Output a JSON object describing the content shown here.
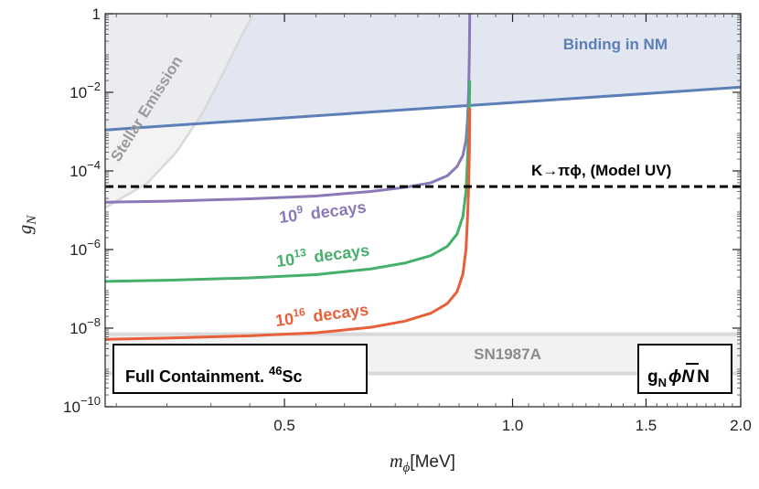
{
  "chart_data": {
    "type": "line",
    "xlabel": "m",
    "xlabel_sub": "ϕ",
    "xlabel_unit": "[MeV]",
    "ylabel": "g",
    "ylabel_sub": "N",
    "x_scale": "log",
    "y_scale": "log",
    "xlim": [
      0.29,
      2.0
    ],
    "ylim": [
      1e-10,
      1
    ],
    "x_ticks": [
      {
        "value": 0.5,
        "label": "0.5"
      },
      {
        "value": 1.0,
        "label": "1.0"
      },
      {
        "value": 1.5,
        "label": "1.5"
      },
      {
        "value": 2.0,
        "label": "2.0"
      }
    ],
    "y_ticks": [
      {
        "value": 1,
        "label": "1",
        "exp": ""
      },
      {
        "value": 0.01,
        "label": "10",
        "exp": "−2"
      },
      {
        "value": 0.0001,
        "label": "10",
        "exp": "−4"
      },
      {
        "value": 1e-06,
        "label": "10",
        "exp": "−6"
      },
      {
        "value": 1e-08,
        "label": "10",
        "exp": "−8"
      },
      {
        "value": 1e-10,
        "label": "10",
        "exp": "−10"
      }
    ],
    "grid": false,
    "regions": [
      {
        "name": "Binding in NM",
        "color": "#5b7fb6",
        "fill": "#dfe5ef",
        "boundary": [
          [
            0.29,
            0.0011
          ],
          [
            2.0,
            0.0135
          ]
        ]
      },
      {
        "name": "Stellar Emission",
        "color": "#d9d9d9",
        "fill": "#eeeeee",
        "boundary": [
          [
            0.29,
            1.15e-05
          ],
          [
            0.33,
            5e-05
          ],
          [
            0.36,
            0.0003
          ],
          [
            0.39,
            0.003
          ],
          [
            0.415,
            0.03
          ],
          [
            0.44,
            0.3
          ],
          [
            0.455,
            1
          ]
        ]
      },
      {
        "name": "SN1987A",
        "color": "#d9d9d9",
        "fill": "#f2f2f2",
        "y_range": [
          7e-10,
          7e-09
        ]
      }
    ],
    "constraint_line": {
      "name": "K→πϕ, (Model UV)",
      "y": 4e-05,
      "style": "dashed",
      "color": "#000000"
    },
    "series": [
      {
        "name": "10^9 decays",
        "mantissa": "10",
        "exponent": "9",
        "suffix": "decays",
        "color": "#8a78b8",
        "points": [
          [
            0.29,
            1.6e-05
          ],
          [
            0.35,
            1.7e-05
          ],
          [
            0.45,
            1.95e-05
          ],
          [
            0.55,
            2.3e-05
          ],
          [
            0.65,
            3e-05
          ],
          [
            0.72,
            3.8e-05
          ],
          [
            0.78,
            5e-05
          ],
          [
            0.82,
            7.5e-05
          ],
          [
            0.845,
            0.00013
          ],
          [
            0.86,
            0.00025
          ],
          [
            0.868,
            0.0006
          ],
          [
            0.872,
            0.002
          ],
          [
            0.875,
            0.01
          ],
          [
            0.877,
            0.1
          ],
          [
            0.878,
            1
          ]
        ]
      },
      {
        "name": "10^13 decays",
        "mantissa": "10",
        "exponent": "13",
        "suffix": "decays",
        "color": "#44b06b",
        "points": [
          [
            0.29,
            1.55e-07
          ],
          [
            0.35,
            1.65e-07
          ],
          [
            0.45,
            1.9e-07
          ],
          [
            0.55,
            2.3e-07
          ],
          [
            0.65,
            3.2e-07
          ],
          [
            0.72,
            4.5e-07
          ],
          [
            0.78,
            7e-07
          ],
          [
            0.82,
            1.2e-06
          ],
          [
            0.845,
            2.5e-06
          ],
          [
            0.86,
            7e-06
          ],
          [
            0.868,
            3e-05
          ],
          [
            0.872,
            0.0002
          ],
          [
            0.875,
            0.001
          ],
          [
            0.877,
            0.005
          ],
          [
            0.878,
            0.02
          ]
        ]
      },
      {
        "name": "10^16 decays",
        "mantissa": "10",
        "exponent": "16",
        "suffix": "decays",
        "color": "#e8603a",
        "points": [
          [
            0.29,
            5.2e-09
          ],
          [
            0.35,
            5.6e-09
          ],
          [
            0.45,
            6.4e-09
          ],
          [
            0.55,
            7.6e-09
          ],
          [
            0.65,
            1.05e-08
          ],
          [
            0.72,
            1.5e-08
          ],
          [
            0.78,
            2.4e-08
          ],
          [
            0.82,
            4.2e-08
          ],
          [
            0.845,
            8.5e-08
          ],
          [
            0.86,
            2.4e-07
          ],
          [
            0.868,
            1e-06
          ],
          [
            0.872,
            6e-06
          ],
          [
            0.875,
            4e-05
          ],
          [
            0.877,
            0.0003
          ],
          [
            0.878,
            0.004
          ]
        ]
      }
    ],
    "annotations": {
      "binding": "Binding in NM",
      "stellar": "Stellar Emission",
      "sn": "SN1987A",
      "kpi": "K→πϕ, (Model UV)",
      "containment_text": "Full Containment. ",
      "containment_sup": "46",
      "containment_elem": "Sc",
      "coupling_g": "g",
      "coupling_sub": "N",
      "coupling_phi": "ϕ",
      "coupling_Nbar": "N",
      "coupling_N": "N"
    }
  }
}
